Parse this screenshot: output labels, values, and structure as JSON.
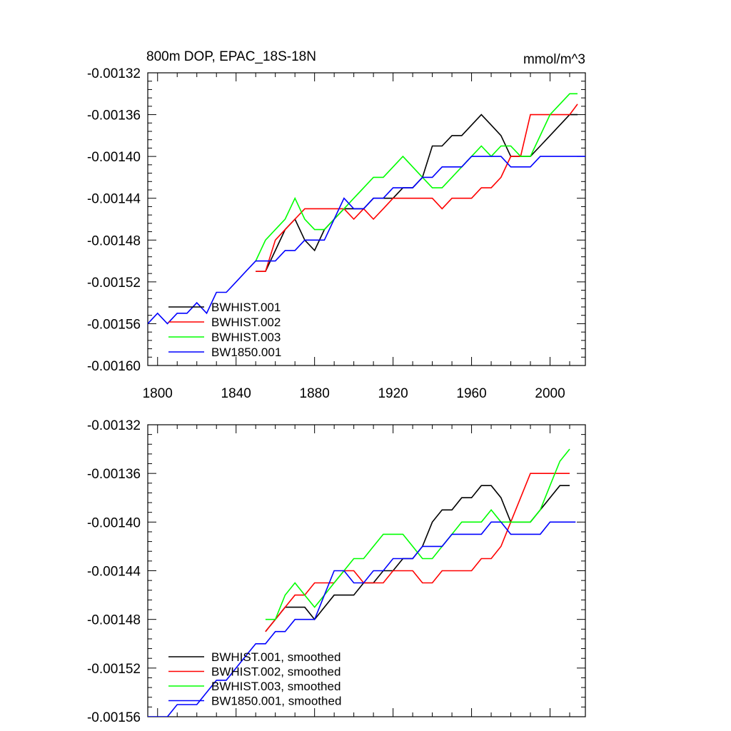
{
  "chart_data": [
    {
      "type": "line",
      "title": "800m DOP, EPAC_18S-18N",
      "units": "mmol/m^3",
      "xlim": [
        1795,
        2018
      ],
      "ylim": [
        -0.0016,
        -0.00132
      ],
      "xticks": [
        1800,
        1840,
        1880,
        1920,
        1960,
        2000
      ],
      "yticks": [
        -0.0016,
        -0.00156,
        -0.00152,
        -0.00148,
        -0.00144,
        -0.0014,
        -0.00136,
        -0.00132
      ],
      "ytick_labels": [
        "-0.00160",
        "-0.00156",
        "-0.00152",
        "-0.00148",
        "-0.00144",
        "-0.00140",
        "-0.00136",
        "-0.00132"
      ],
      "xtick_labels": [
        "1800",
        "1840",
        "1880",
        "1920",
        "1960",
        "2000"
      ],
      "legend_position": "bottom-left",
      "series": [
        {
          "name": "BWHIST.001",
          "color": "#000000",
          "x": [
            1850,
            1855,
            1860,
            1865,
            1870,
            1875,
            1880,
            1885,
            1890,
            1895,
            1900,
            1905,
            1910,
            1915,
            1920,
            1925,
            1930,
            1935,
            1940,
            1945,
            1950,
            1955,
            1960,
            1965,
            1970,
            1975,
            1980,
            1985,
            1990,
            1995,
            2000,
            2005,
            2010,
            2014
          ],
          "y": [
            -0.00151,
            -0.00151,
            -0.00149,
            -0.00147,
            -0.00146,
            -0.00148,
            -0.00149,
            -0.00147,
            -0.00146,
            -0.00145,
            -0.00145,
            -0.00145,
            -0.00144,
            -0.00144,
            -0.00144,
            -0.00143,
            -0.00143,
            -0.00142,
            -0.00139,
            -0.00139,
            -0.00138,
            -0.00138,
            -0.00137,
            -0.00136,
            -0.00137,
            -0.00138,
            -0.0014,
            -0.0014,
            -0.0014,
            -0.00139,
            -0.00138,
            -0.00137,
            -0.00136,
            -0.00136
          ]
        },
        {
          "name": "BWHIST.002",
          "color": "#ff0000",
          "x": [
            1850,
            1855,
            1860,
            1865,
            1870,
            1875,
            1880,
            1885,
            1890,
            1895,
            1900,
            1905,
            1910,
            1915,
            1920,
            1925,
            1930,
            1935,
            1940,
            1945,
            1950,
            1955,
            1960,
            1965,
            1970,
            1975,
            1980,
            1985,
            1990,
            1995,
            2000,
            2005,
            2010,
            2014
          ],
          "y": [
            -0.00151,
            -0.00151,
            -0.00148,
            -0.00147,
            -0.00146,
            -0.00145,
            -0.00145,
            -0.00145,
            -0.00145,
            -0.00145,
            -0.00146,
            -0.00145,
            -0.00146,
            -0.00145,
            -0.00144,
            -0.00144,
            -0.00144,
            -0.00144,
            -0.00144,
            -0.00145,
            -0.00144,
            -0.00144,
            -0.00144,
            -0.00143,
            -0.00143,
            -0.00142,
            -0.0014,
            -0.0014,
            -0.00136,
            -0.00136,
            -0.00136,
            -0.00136,
            -0.00136,
            -0.00135
          ]
        },
        {
          "name": "BWHIST.003",
          "color": "#00ff00",
          "x": [
            1850,
            1855,
            1860,
            1865,
            1870,
            1875,
            1880,
            1885,
            1890,
            1895,
            1900,
            1905,
            1910,
            1915,
            1920,
            1925,
            1930,
            1935,
            1940,
            1945,
            1950,
            1955,
            1960,
            1965,
            1970,
            1975,
            1980,
            1985,
            1990,
            1995,
            2000,
            2005,
            2010,
            2014
          ],
          "y": [
            -0.0015,
            -0.00148,
            -0.00147,
            -0.00146,
            -0.00144,
            -0.00146,
            -0.00147,
            -0.00147,
            -0.00146,
            -0.00145,
            -0.00144,
            -0.00143,
            -0.00142,
            -0.00142,
            -0.00141,
            -0.0014,
            -0.00141,
            -0.00142,
            -0.00143,
            -0.00143,
            -0.00142,
            -0.00141,
            -0.0014,
            -0.00139,
            -0.0014,
            -0.00139,
            -0.00139,
            -0.0014,
            -0.0014,
            -0.00138,
            -0.00136,
            -0.00135,
            -0.00134,
            -0.00134
          ]
        },
        {
          "name": "BW1850.001",
          "color": "#0000ff",
          "x": [
            1795,
            1800,
            1805,
            1810,
            1815,
            1820,
            1825,
            1830,
            1835,
            1840,
            1845,
            1850,
            1855,
            1860,
            1865,
            1870,
            1875,
            1880,
            1885,
            1890,
            1895,
            1900,
            1905,
            1910,
            1915,
            1920,
            1925,
            1930,
            1935,
            1940,
            1945,
            1950,
            1955,
            1960,
            1965,
            1970,
            1975,
            1980,
            1985,
            1990,
            1995,
            2000,
            2005,
            2010,
            2015,
            2018
          ],
          "y": [
            -0.00156,
            -0.00155,
            -0.00156,
            -0.00155,
            -0.00155,
            -0.00154,
            -0.00155,
            -0.00153,
            -0.00153,
            -0.00152,
            -0.00151,
            -0.0015,
            -0.0015,
            -0.0015,
            -0.00149,
            -0.00149,
            -0.00148,
            -0.00148,
            -0.00148,
            -0.00146,
            -0.00144,
            -0.00145,
            -0.00145,
            -0.00144,
            -0.00144,
            -0.00143,
            -0.00143,
            -0.00143,
            -0.00142,
            -0.00142,
            -0.00141,
            -0.00141,
            -0.00141,
            -0.0014,
            -0.0014,
            -0.0014,
            -0.0014,
            -0.00141,
            -0.00141,
            -0.00141,
            -0.0014,
            -0.0014,
            -0.0014,
            -0.0014,
            -0.0014,
            -0.0014
          ]
        }
      ]
    },
    {
      "type": "line",
      "xlim": [
        1795,
        2018
      ],
      "ylim": [
        -0.00156,
        -0.00132
      ],
      "yticks": [
        -0.00156,
        -0.00152,
        -0.00148,
        -0.00144,
        -0.0014,
        -0.00136,
        -0.00132
      ],
      "ytick_labels": [
        "-0.00156",
        "-0.00152",
        "-0.00148",
        "-0.00144",
        "-0.00140",
        "-0.00136",
        "-0.00132"
      ],
      "legend_position": "bottom-left",
      "series": [
        {
          "name": "BWHIST.001, smoothed",
          "color": "#000000",
          "x": [
            1855,
            1860,
            1865,
            1870,
            1875,
            1880,
            1885,
            1890,
            1895,
            1900,
            1905,
            1910,
            1915,
            1920,
            1925,
            1930,
            1935,
            1940,
            1945,
            1950,
            1955,
            1960,
            1965,
            1970,
            1975,
            1980,
            1985,
            1990,
            1995,
            2000,
            2005,
            2010
          ],
          "y": [
            -0.00149,
            -0.00148,
            -0.00147,
            -0.00147,
            -0.00147,
            -0.00148,
            -0.00147,
            -0.00146,
            -0.00146,
            -0.00146,
            -0.00145,
            -0.00145,
            -0.00144,
            -0.00144,
            -0.00143,
            -0.00143,
            -0.00142,
            -0.0014,
            -0.00139,
            -0.00139,
            -0.00138,
            -0.00138,
            -0.00137,
            -0.00137,
            -0.00138,
            -0.0014,
            -0.0014,
            -0.0014,
            -0.00139,
            -0.00138,
            -0.00137,
            -0.00137
          ]
        },
        {
          "name": "BWHIST.002, smoothed",
          "color": "#ff0000",
          "x": [
            1855,
            1860,
            1865,
            1870,
            1875,
            1880,
            1885,
            1890,
            1895,
            1900,
            1905,
            1910,
            1915,
            1920,
            1925,
            1930,
            1935,
            1940,
            1945,
            1950,
            1955,
            1960,
            1965,
            1970,
            1975,
            1980,
            1985,
            1990,
            1995,
            2000,
            2005,
            2010
          ],
          "y": [
            -0.00149,
            -0.00148,
            -0.00147,
            -0.00146,
            -0.00146,
            -0.00145,
            -0.00145,
            -0.00145,
            -0.00144,
            -0.00144,
            -0.00145,
            -0.00145,
            -0.00145,
            -0.00144,
            -0.00144,
            -0.00144,
            -0.00145,
            -0.00145,
            -0.00144,
            -0.00144,
            -0.00144,
            -0.00144,
            -0.00143,
            -0.00143,
            -0.00142,
            -0.0014,
            -0.00138,
            -0.00136,
            -0.00136,
            -0.00136,
            -0.00136,
            -0.00136
          ]
        },
        {
          "name": "BWHIST.003, smoothed",
          "color": "#00ff00",
          "x": [
            1855,
            1860,
            1865,
            1870,
            1875,
            1880,
            1885,
            1890,
            1895,
            1900,
            1905,
            1910,
            1915,
            1920,
            1925,
            1930,
            1935,
            1940,
            1945,
            1950,
            1955,
            1960,
            1965,
            1970,
            1975,
            1980,
            1985,
            1990,
            1995,
            2000,
            2005,
            2010
          ],
          "y": [
            -0.00148,
            -0.00148,
            -0.00146,
            -0.00145,
            -0.00146,
            -0.00147,
            -0.00146,
            -0.00145,
            -0.00144,
            -0.00143,
            -0.00143,
            -0.00142,
            -0.00141,
            -0.00141,
            -0.00141,
            -0.00142,
            -0.00143,
            -0.00143,
            -0.00142,
            -0.00141,
            -0.0014,
            -0.0014,
            -0.0014,
            -0.00139,
            -0.0014,
            -0.0014,
            -0.0014,
            -0.0014,
            -0.00139,
            -0.00137,
            -0.00135,
            -0.00134
          ]
        },
        {
          "name": "BW1850.001, smoothed",
          "color": "#0000ff",
          "x": [
            1795,
            1800,
            1805,
            1810,
            1815,
            1820,
            1825,
            1830,
            1835,
            1840,
            1845,
            1850,
            1855,
            1860,
            1865,
            1870,
            1875,
            1880,
            1885,
            1890,
            1895,
            1900,
            1905,
            1910,
            1915,
            1920,
            1925,
            1930,
            1935,
            1940,
            1945,
            1950,
            1955,
            1960,
            1965,
            1970,
            1975,
            1980,
            1985,
            1990,
            1995,
            2000,
            2005,
            2010,
            2013
          ],
          "y": [
            -0.00156,
            -0.00156,
            -0.00156,
            -0.00155,
            -0.00155,
            -0.00155,
            -0.00154,
            -0.00153,
            -0.00153,
            -0.00152,
            -0.00151,
            -0.0015,
            -0.0015,
            -0.00149,
            -0.00149,
            -0.00148,
            -0.00148,
            -0.00148,
            -0.00146,
            -0.00144,
            -0.00144,
            -0.00145,
            -0.00145,
            -0.00144,
            -0.00144,
            -0.00143,
            -0.00143,
            -0.00143,
            -0.00142,
            -0.00142,
            -0.00142,
            -0.00141,
            -0.00141,
            -0.00141,
            -0.00141,
            -0.0014,
            -0.0014,
            -0.00141,
            -0.00141,
            -0.00141,
            -0.00141,
            -0.0014,
            -0.0014,
            -0.0014,
            -0.0014
          ]
        }
      ]
    }
  ]
}
